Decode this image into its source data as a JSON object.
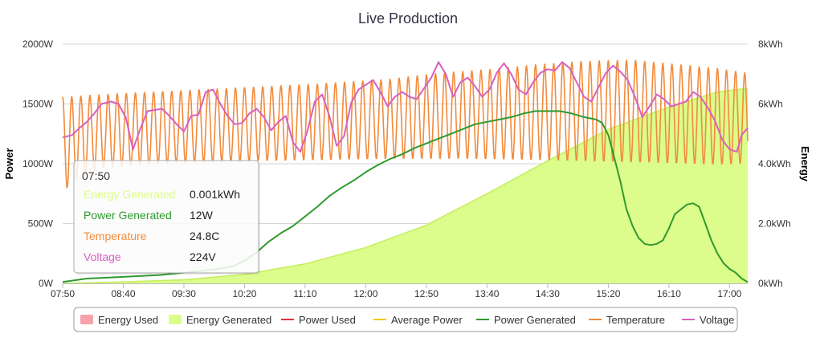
{
  "chart_data": {
    "type": "line",
    "title": "Live Production",
    "x_categories": [
      "07:50",
      "08:40",
      "09:30",
      "10:20",
      "11:10",
      "12:00",
      "12:50",
      "13:40",
      "14:30",
      "15:20",
      "16:10",
      "17:00"
    ],
    "x_range_minutes": [
      470,
      1035
    ],
    "y_left": {
      "label": "Power",
      "ticks": [
        "0W",
        "500W",
        "1000W",
        "1500W",
        "2000W"
      ],
      "range": [
        0,
        2000
      ]
    },
    "y_right": {
      "label": "Energy",
      "ticks": [
        "0kWh",
        "2.0kWh",
        "4.0kWh",
        "6kWh",
        "8kWh"
      ],
      "range": [
        0,
        8
      ]
    },
    "grid": true,
    "legend_position": "bottom",
    "colors": {
      "energy_used": "#f7a1a8",
      "energy_generated": "#dcfc8c",
      "energy_generated_line": "#c4ee5c",
      "power_used": "#e8303a",
      "average_power": "#f5c518",
      "power_generated": "#2e9a2e",
      "temperature": "#f28b3c",
      "voltage": "#d860c0"
    },
    "series": [
      {
        "name": "Energy Used",
        "type": "area",
        "axis": "right",
        "points": []
      },
      {
        "name": "Energy Generated",
        "type": "area",
        "axis": "right",
        "points": [
          [
            470,
            0.001
          ],
          [
            520,
            0.05
          ],
          [
            570,
            0.12
          ],
          [
            620,
            0.3
          ],
          [
            670,
            0.65
          ],
          [
            720,
            1.2
          ],
          [
            770,
            1.95
          ],
          [
            820,
            3.0
          ],
          [
            870,
            4.1
          ],
          [
            920,
            5.15
          ],
          [
            970,
            5.9
          ],
          [
            1010,
            6.4
          ],
          [
            1030,
            6.5
          ],
          [
            1035,
            6.5
          ]
        ]
      },
      {
        "name": "Power Used",
        "type": "line",
        "axis": "left",
        "points": []
      },
      {
        "name": "Average Power",
        "type": "line",
        "axis": "left",
        "points": []
      },
      {
        "name": "Power Generated",
        "type": "line",
        "axis": "left",
        "points": [
          [
            470,
            12
          ],
          [
            490,
            40
          ],
          [
            510,
            50
          ],
          [
            530,
            60
          ],
          [
            550,
            70
          ],
          [
            570,
            90
          ],
          [
            590,
            110
          ],
          [
            610,
            140
          ],
          [
            620,
            190
          ],
          [
            630,
            260
          ],
          [
            640,
            350
          ],
          [
            650,
            420
          ],
          [
            660,
            480
          ],
          [
            670,
            560
          ],
          [
            680,
            640
          ],
          [
            690,
            730
          ],
          [
            700,
            800
          ],
          [
            710,
            860
          ],
          [
            720,
            930
          ],
          [
            730,
            990
          ],
          [
            740,
            1040
          ],
          [
            750,
            1080
          ],
          [
            760,
            1130
          ],
          [
            770,
            1170
          ],
          [
            780,
            1210
          ],
          [
            790,
            1250
          ],
          [
            800,
            1290
          ],
          [
            810,
            1330
          ],
          [
            820,
            1350
          ],
          [
            830,
            1370
          ],
          [
            840,
            1390
          ],
          [
            850,
            1420
          ],
          [
            860,
            1440
          ],
          [
            870,
            1440
          ],
          [
            880,
            1440
          ],
          [
            890,
            1420
          ],
          [
            900,
            1390
          ],
          [
            910,
            1370
          ],
          [
            915,
            1340
          ],
          [
            920,
            1240
          ],
          [
            925,
            1050
          ],
          [
            930,
            850
          ],
          [
            935,
            620
          ],
          [
            940,
            480
          ],
          [
            945,
            380
          ],
          [
            950,
            330
          ],
          [
            955,
            320
          ],
          [
            960,
            330
          ],
          [
            965,
            360
          ],
          [
            970,
            460
          ],
          [
            975,
            580
          ],
          [
            980,
            620
          ],
          [
            985,
            660
          ],
          [
            990,
            670
          ],
          [
            995,
            640
          ],
          [
            1000,
            500
          ],
          [
            1005,
            360
          ],
          [
            1010,
            250
          ],
          [
            1015,
            170
          ],
          [
            1020,
            120
          ],
          [
            1025,
            90
          ],
          [
            1030,
            40
          ],
          [
            1035,
            10
          ]
        ]
      },
      {
        "name": "Temperature",
        "type": "line",
        "axis": "left",
        "oscillating": true,
        "period_minutes": 7.5,
        "start_value": 24.8,
        "upper_envelope": [
          [
            470,
            1560
          ],
          [
            500,
            1580
          ],
          [
            560,
            1610
          ],
          [
            620,
            1640
          ],
          [
            680,
            1670
          ],
          [
            740,
            1710
          ],
          [
            780,
            1760
          ],
          [
            820,
            1790
          ],
          [
            860,
            1830
          ],
          [
            900,
            1860
          ],
          [
            940,
            1870
          ],
          [
            980,
            1830
          ],
          [
            1010,
            1800
          ],
          [
            1035,
            1760
          ]
        ],
        "lower_envelope": [
          [
            470,
            760
          ],
          [
            480,
            860
          ],
          [
            500,
            960
          ],
          [
            540,
            990
          ],
          [
            580,
            1010
          ],
          [
            620,
            1020
          ],
          [
            680,
            1030
          ],
          [
            740,
            1040
          ],
          [
            800,
            1040
          ],
          [
            860,
            1030
          ],
          [
            900,
            1020
          ],
          [
            940,
            1010
          ],
          [
            980,
            1000
          ],
          [
            1010,
            990
          ],
          [
            1035,
            1000
          ]
        ]
      },
      {
        "name": "Voltage",
        "type": "line",
        "axis": "left",
        "points": [
          [
            470,
            1220
          ],
          [
            478,
            1240
          ],
          [
            484,
            1300
          ],
          [
            490,
            1350
          ],
          [
            496,
            1420
          ],
          [
            502,
            1500
          ],
          [
            510,
            1520
          ],
          [
            516,
            1500
          ],
          [
            522,
            1390
          ],
          [
            528,
            1120
          ],
          [
            534,
            1290
          ],
          [
            540,
            1440
          ],
          [
            546,
            1450
          ],
          [
            552,
            1460
          ],
          [
            558,
            1400
          ],
          [
            564,
            1330
          ],
          [
            570,
            1270
          ],
          [
            576,
            1400
          ],
          [
            582,
            1410
          ],
          [
            588,
            1600
          ],
          [
            594,
            1620
          ],
          [
            600,
            1500
          ],
          [
            606,
            1400
          ],
          [
            612,
            1330
          ],
          [
            618,
            1340
          ],
          [
            624,
            1420
          ],
          [
            630,
            1460
          ],
          [
            636,
            1390
          ],
          [
            642,
            1280
          ],
          [
            648,
            1350
          ],
          [
            654,
            1400
          ],
          [
            660,
            1180
          ],
          [
            666,
            1100
          ],
          [
            672,
            1280
          ],
          [
            678,
            1520
          ],
          [
            684,
            1580
          ],
          [
            690,
            1400
          ],
          [
            696,
            1150
          ],
          [
            702,
            1230
          ],
          [
            708,
            1510
          ],
          [
            714,
            1620
          ],
          [
            720,
            1660
          ],
          [
            726,
            1700
          ],
          [
            732,
            1600
          ],
          [
            738,
            1480
          ],
          [
            744,
            1560
          ],
          [
            750,
            1600
          ],
          [
            756,
            1560
          ],
          [
            762,
            1540
          ],
          [
            768,
            1630
          ],
          [
            774,
            1720
          ],
          [
            780,
            1850
          ],
          [
            786,
            1750
          ],
          [
            792,
            1560
          ],
          [
            798,
            1680
          ],
          [
            804,
            1720
          ],
          [
            810,
            1650
          ],
          [
            816,
            1560
          ],
          [
            822,
            1620
          ],
          [
            828,
            1760
          ],
          [
            834,
            1840
          ],
          [
            840,
            1750
          ],
          [
            846,
            1620
          ],
          [
            852,
            1580
          ],
          [
            858,
            1680
          ],
          [
            864,
            1760
          ],
          [
            870,
            1790
          ],
          [
            876,
            1780
          ],
          [
            882,
            1850
          ],
          [
            888,
            1800
          ],
          [
            894,
            1680
          ],
          [
            900,
            1560
          ],
          [
            906,
            1520
          ],
          [
            912,
            1640
          ],
          [
            918,
            1760
          ],
          [
            924,
            1820
          ],
          [
            930,
            1770
          ],
          [
            936,
            1700
          ],
          [
            942,
            1560
          ],
          [
            948,
            1390
          ],
          [
            954,
            1480
          ],
          [
            960,
            1580
          ],
          [
            966,
            1540
          ],
          [
            972,
            1480
          ],
          [
            978,
            1500
          ],
          [
            984,
            1520
          ],
          [
            990,
            1600
          ],
          [
            996,
            1560
          ],
          [
            1002,
            1470
          ],
          [
            1008,
            1360
          ],
          [
            1014,
            1200
          ],
          [
            1020,
            1120
          ],
          [
            1026,
            1100
          ],
          [
            1030,
            1240
          ],
          [
            1035,
            1300
          ]
        ]
      }
    ]
  },
  "tooltip": {
    "time": "07:50",
    "rows": [
      {
        "label": "Energy Generated",
        "value": "0.001kWh",
        "color": "#dcfc8c"
      },
      {
        "label": "Power Generated",
        "value": "12W",
        "color": "#2e9a2e"
      },
      {
        "label": "Temperature",
        "value": "24.8C",
        "color": "#f28b3c"
      },
      {
        "label": "Voltage",
        "value": "224V",
        "color": "#d860c0"
      }
    ]
  },
  "legend": [
    {
      "label": "Energy Used",
      "kind": "box",
      "color": "#f7a1a8"
    },
    {
      "label": "Energy Generated",
      "kind": "box",
      "color": "#dcfc8c"
    },
    {
      "label": "Power Used",
      "kind": "line",
      "color": "#e8303a"
    },
    {
      "label": "Average Power",
      "kind": "line",
      "color": "#f5c518"
    },
    {
      "label": "Power Generated",
      "kind": "line",
      "color": "#2e9a2e"
    },
    {
      "label": "Temperature",
      "kind": "line",
      "color": "#f28b3c"
    },
    {
      "label": "Voltage",
      "kind": "line",
      "color": "#d860c0"
    }
  ]
}
